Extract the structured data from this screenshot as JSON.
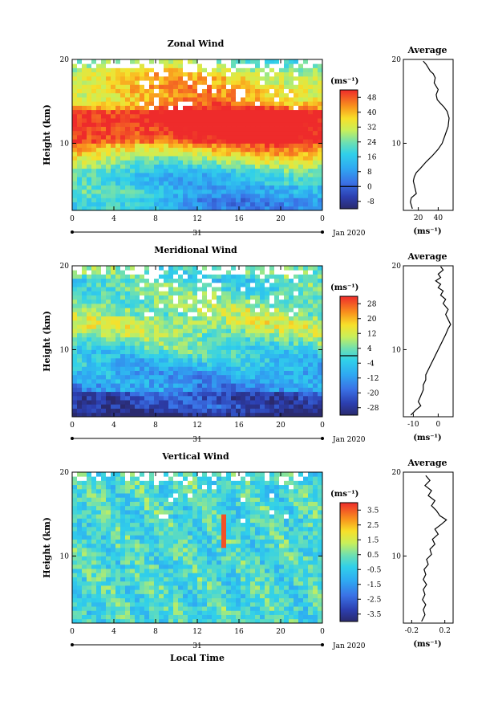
{
  "chart_data": [
    {
      "type": "heatmap",
      "title": "Zonal Wind",
      "ylabel": "Height (km)",
      "xlabel": "",
      "x_range": [
        0,
        24
      ],
      "y_range": [
        2,
        20
      ],
      "x_ticks": [
        "0",
        "4",
        "8",
        "12",
        "16",
        "20",
        "0"
      ],
      "y_ticks": [
        "10",
        "20"
      ],
      "date_label": "31",
      "date_suffix": "Jan 2020",
      "colorbar": {
        "unit_label": "(ms⁻¹)",
        "ticks": [
          "48",
          "40",
          "32",
          "24",
          "16",
          "8",
          "0",
          "-8"
        ],
        "range": [
          -12,
          52
        ],
        "contour_level": 0
      },
      "profile": {
        "title": "Average",
        "x_ticks": [
          "20",
          "40"
        ],
        "x_range": [
          5,
          55
        ],
        "xlabel": "(ms⁻¹)",
        "y_ticks": [
          "10",
          "20"
        ],
        "points": [
          [
            14,
            2.2
          ],
          [
            12,
            3.0
          ],
          [
            13,
            3.5
          ],
          [
            18,
            4.0
          ],
          [
            17,
            4.5
          ],
          [
            15,
            5.5
          ],
          [
            16,
            6.0
          ],
          [
            18,
            6.5
          ],
          [
            22,
            7.0
          ],
          [
            28,
            7.8
          ],
          [
            34,
            8.5
          ],
          [
            40,
            9.3
          ],
          [
            44,
            10.0
          ],
          [
            47,
            11.0
          ],
          [
            50,
            12.0
          ],
          [
            51,
            13.0
          ],
          [
            49,
            13.8
          ],
          [
            46,
            14.3
          ],
          [
            42,
            14.8
          ],
          [
            39,
            15.2
          ],
          [
            38,
            15.8
          ],
          [
            40,
            16.4
          ],
          [
            38,
            16.8
          ],
          [
            36,
            17.2
          ],
          [
            37,
            17.8
          ],
          [
            35,
            18.3
          ],
          [
            32,
            18.6
          ],
          [
            30,
            19.0
          ],
          [
            28,
            19.4
          ],
          [
            25,
            19.8
          ]
        ]
      }
    },
    {
      "type": "heatmap",
      "title": "Meridional Wind",
      "ylabel": "Height (km)",
      "xlabel": "",
      "x_range": [
        0,
        24
      ],
      "y_range": [
        2,
        20
      ],
      "x_ticks": [
        "0",
        "4",
        "8",
        "12",
        "16",
        "20",
        "0"
      ],
      "y_ticks": [
        "10",
        "20"
      ],
      "date_label": "31",
      "date_suffix": "Jan 2020",
      "colorbar": {
        "unit_label": "(ms⁻¹)",
        "ticks": [
          "28",
          "20",
          "12",
          "4",
          "-4",
          "-12",
          "-20",
          "-28"
        ],
        "range": [
          -32,
          32
        ],
        "contour_level": 0
      },
      "profile": {
        "title": "Average",
        "x_ticks": [
          "-10",
          "0"
        ],
        "x_range": [
          -14,
          6
        ],
        "xlabel": "(ms⁻¹)",
        "y_ticks": [
          "10",
          "20"
        ],
        "points": [
          [
            -11,
            2.2
          ],
          [
            -9,
            2.8
          ],
          [
            -7,
            3.3
          ],
          [
            -8,
            3.8
          ],
          [
            -7,
            4.5
          ],
          [
            -6,
            5.2
          ],
          [
            -6,
            5.8
          ],
          [
            -5,
            6.4
          ],
          [
            -5,
            7.0
          ],
          [
            -4,
            7.6
          ],
          [
            -3,
            8.2
          ],
          [
            -2,
            8.8
          ],
          [
            -1,
            9.4
          ],
          [
            0,
            10.0
          ],
          [
            1,
            10.6
          ],
          [
            2,
            11.2
          ],
          [
            3,
            11.8
          ],
          [
            4,
            12.5
          ],
          [
            5,
            13.0
          ],
          [
            4,
            13.6
          ],
          [
            3,
            14.2
          ],
          [
            4,
            14.8
          ],
          [
            2,
            15.5
          ],
          [
            3,
            16.0
          ],
          [
            1,
            16.5
          ],
          [
            2,
            17.0
          ],
          [
            0,
            17.4
          ],
          [
            1,
            17.8
          ],
          [
            -1,
            18.2
          ],
          [
            1,
            18.6
          ],
          [
            0,
            19.0
          ],
          [
            2,
            19.5
          ],
          [
            1,
            19.9
          ]
        ]
      }
    },
    {
      "type": "heatmap",
      "title": "Vertical Wind",
      "ylabel": "Height (km)",
      "xlabel": "Local Time",
      "x_range": [
        0,
        24
      ],
      "y_range": [
        2,
        20
      ],
      "x_ticks": [
        "0",
        "4",
        "8",
        "12",
        "16",
        "20",
        "0"
      ],
      "y_ticks": [
        "10",
        "20"
      ],
      "date_label": "31",
      "date_suffix": "Jan 2020",
      "colorbar": {
        "unit_label": "(ms⁻¹)",
        "ticks": [
          "3.5",
          "2.5",
          "1.5",
          "0.5",
          "-0.5",
          "-1.5",
          "-2.5",
          "-3.5"
        ],
        "range": [
          -4,
          4
        ],
        "contour_level": null
      },
      "profile": {
        "title": "Average",
        "x_ticks": [
          "-0.2",
          "0.2"
        ],
        "x_range": [
          -0.3,
          0.3
        ],
        "xlabel": "(ms⁻¹)",
        "y_ticks": [
          "10",
          "20"
        ],
        "points": [
          [
            -0.08,
            2.2
          ],
          [
            -0.04,
            3.0
          ],
          [
            -0.06,
            3.6
          ],
          [
            -0.03,
            4.2
          ],
          [
            -0.07,
            4.8
          ],
          [
            -0.04,
            5.4
          ],
          [
            -0.06,
            6.0
          ],
          [
            -0.02,
            6.6
          ],
          [
            -0.06,
            7.2
          ],
          [
            -0.03,
            7.8
          ],
          [
            -0.05,
            8.4
          ],
          [
            0.0,
            9.0
          ],
          [
            -0.02,
            9.6
          ],
          [
            0.04,
            10.2
          ],
          [
            0.02,
            10.8
          ],
          [
            0.08,
            11.4
          ],
          [
            0.05,
            12.0
          ],
          [
            0.12,
            12.6
          ],
          [
            0.08,
            13.2
          ],
          [
            0.16,
            13.8
          ],
          [
            0.22,
            14.3
          ],
          [
            0.14,
            14.8
          ],
          [
            0.1,
            15.4
          ],
          [
            0.04,
            16.0
          ],
          [
            0.08,
            16.6
          ],
          [
            0.0,
            17.2
          ],
          [
            0.04,
            17.8
          ],
          [
            -0.04,
            18.4
          ],
          [
            0.02,
            19.0
          ],
          [
            -0.03,
            19.6
          ]
        ]
      }
    }
  ]
}
